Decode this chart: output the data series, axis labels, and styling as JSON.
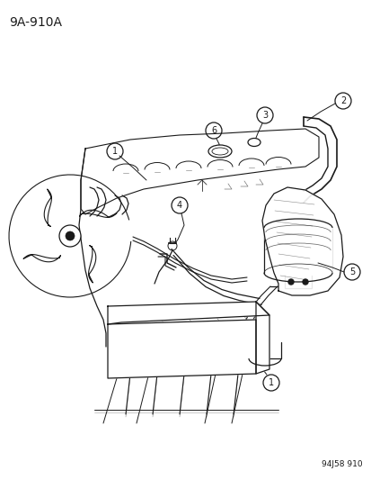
{
  "title_label": "9A-910A",
  "footer_label": "94J58 910",
  "background_color": "#ffffff",
  "line_color": "#1a1a1a",
  "label_color": "#1a1a1a",
  "fig_width": 4.14,
  "fig_height": 5.33,
  "dpi": 100,
  "title_fontsize": 10,
  "footer_fontsize": 6.5
}
